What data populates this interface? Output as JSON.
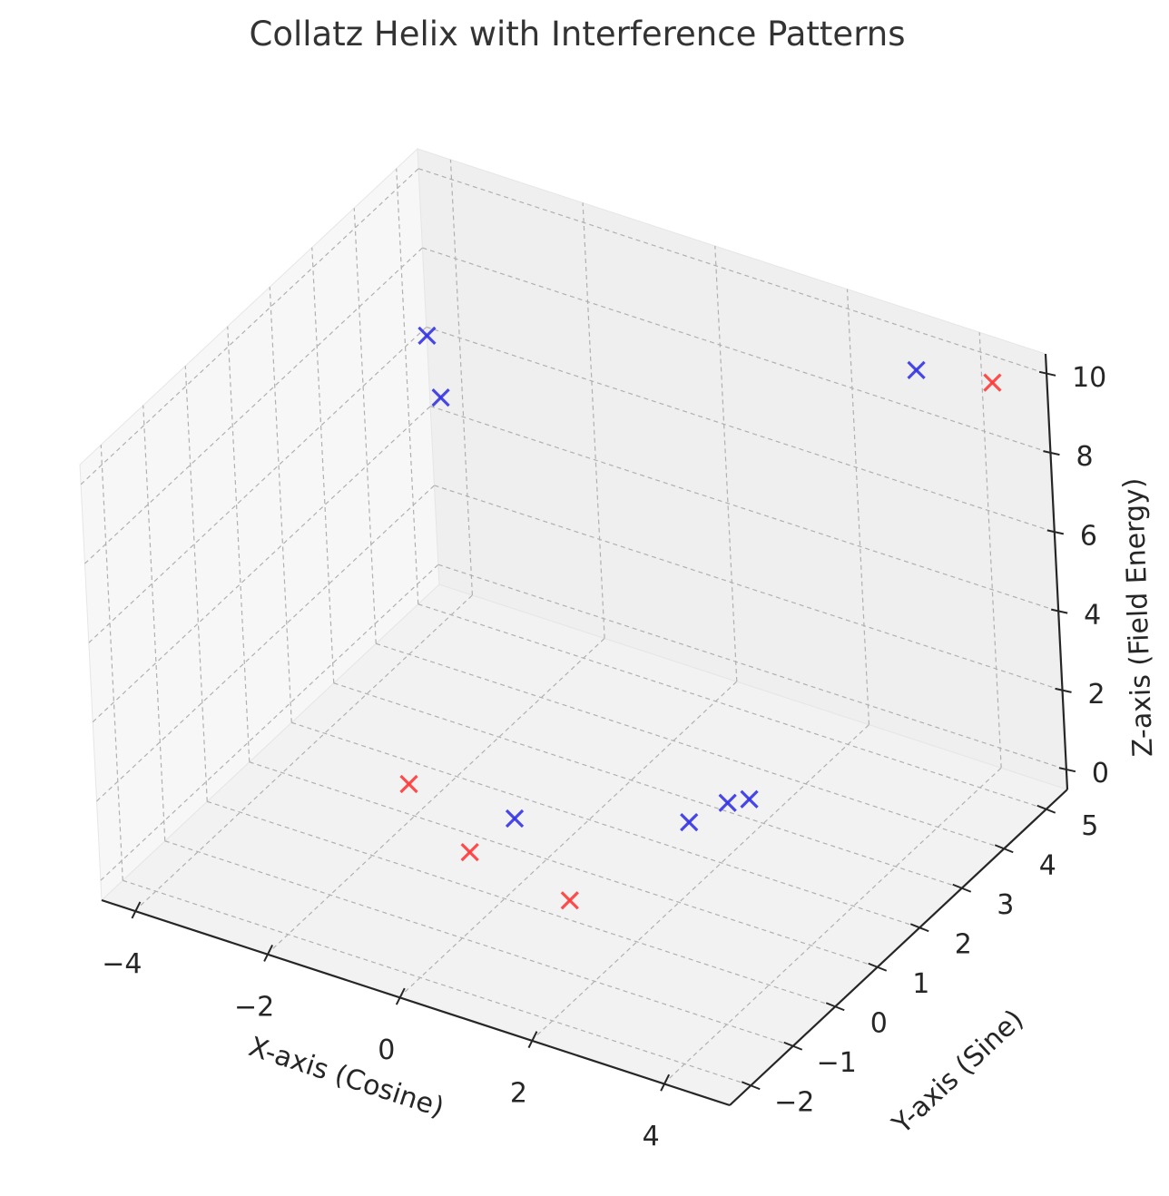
{
  "chart_data": {
    "type": "scatter",
    "projection": "3d",
    "title": "Collatz Helix with Interference Patterns",
    "xlabel": "X-axis (Cosine)",
    "ylabel": "Y-axis (Sine)",
    "zlabel": "Z-axis (Field Energy)",
    "xlim": [
      -4.5,
      5
    ],
    "ylim": [
      -2.5,
      5.5
    ],
    "zlim": [
      -0.5,
      10.5
    ],
    "x_ticks": [
      -4,
      -2,
      0,
      2,
      4
    ],
    "y_ticks": [
      -2,
      -1,
      0,
      1,
      2,
      3,
      4,
      5
    ],
    "z_ticks": [
      0,
      2,
      4,
      6,
      8,
      10
    ],
    "x_tick_labels": [
      "−4",
      "−2",
      "0",
      "2",
      "4"
    ],
    "y_tick_labels": [
      "−2",
      "−1",
      "0",
      "1",
      "2",
      "3",
      "4",
      "5"
    ],
    "z_tick_labels": [
      "0",
      "2",
      "4",
      "6",
      "8",
      "10"
    ],
    "grid": true,
    "marker": "x",
    "colors": {
      "positive": "#ff3b3b",
      "negative": "#3535e6"
    },
    "series": [
      {
        "color": "#ff3b3b",
        "points": [
          {
            "x": 1.0,
            "y": 0.0,
            "z": 0.0
          },
          {
            "x": -2.2,
            "y": 1.2,
            "z": 0.0
          },
          {
            "x": -0.5,
            "y": 0.0,
            "z": 0.4
          },
          {
            "x": 4.5,
            "y": 5.0,
            "z": 10.0
          }
        ]
      },
      {
        "color": "#3535e6",
        "points": [
          {
            "x": -0.6,
            "y": 1.2,
            "z": 0.0
          },
          {
            "x": 1.4,
            "y": 2.2,
            "z": 0.0
          },
          {
            "x": 1.8,
            "y": 3.0,
            "z": 0.0
          },
          {
            "x": 1.6,
            "y": 2.8,
            "z": 0.0
          },
          {
            "x": 3.0,
            "y": 5.5,
            "z": 9.0
          },
          {
            "x": -2.8,
            "y": 3.0,
            "z": 9.2
          },
          {
            "x": -2.5,
            "y": 2.8,
            "z": 8.0
          }
        ]
      }
    ]
  }
}
